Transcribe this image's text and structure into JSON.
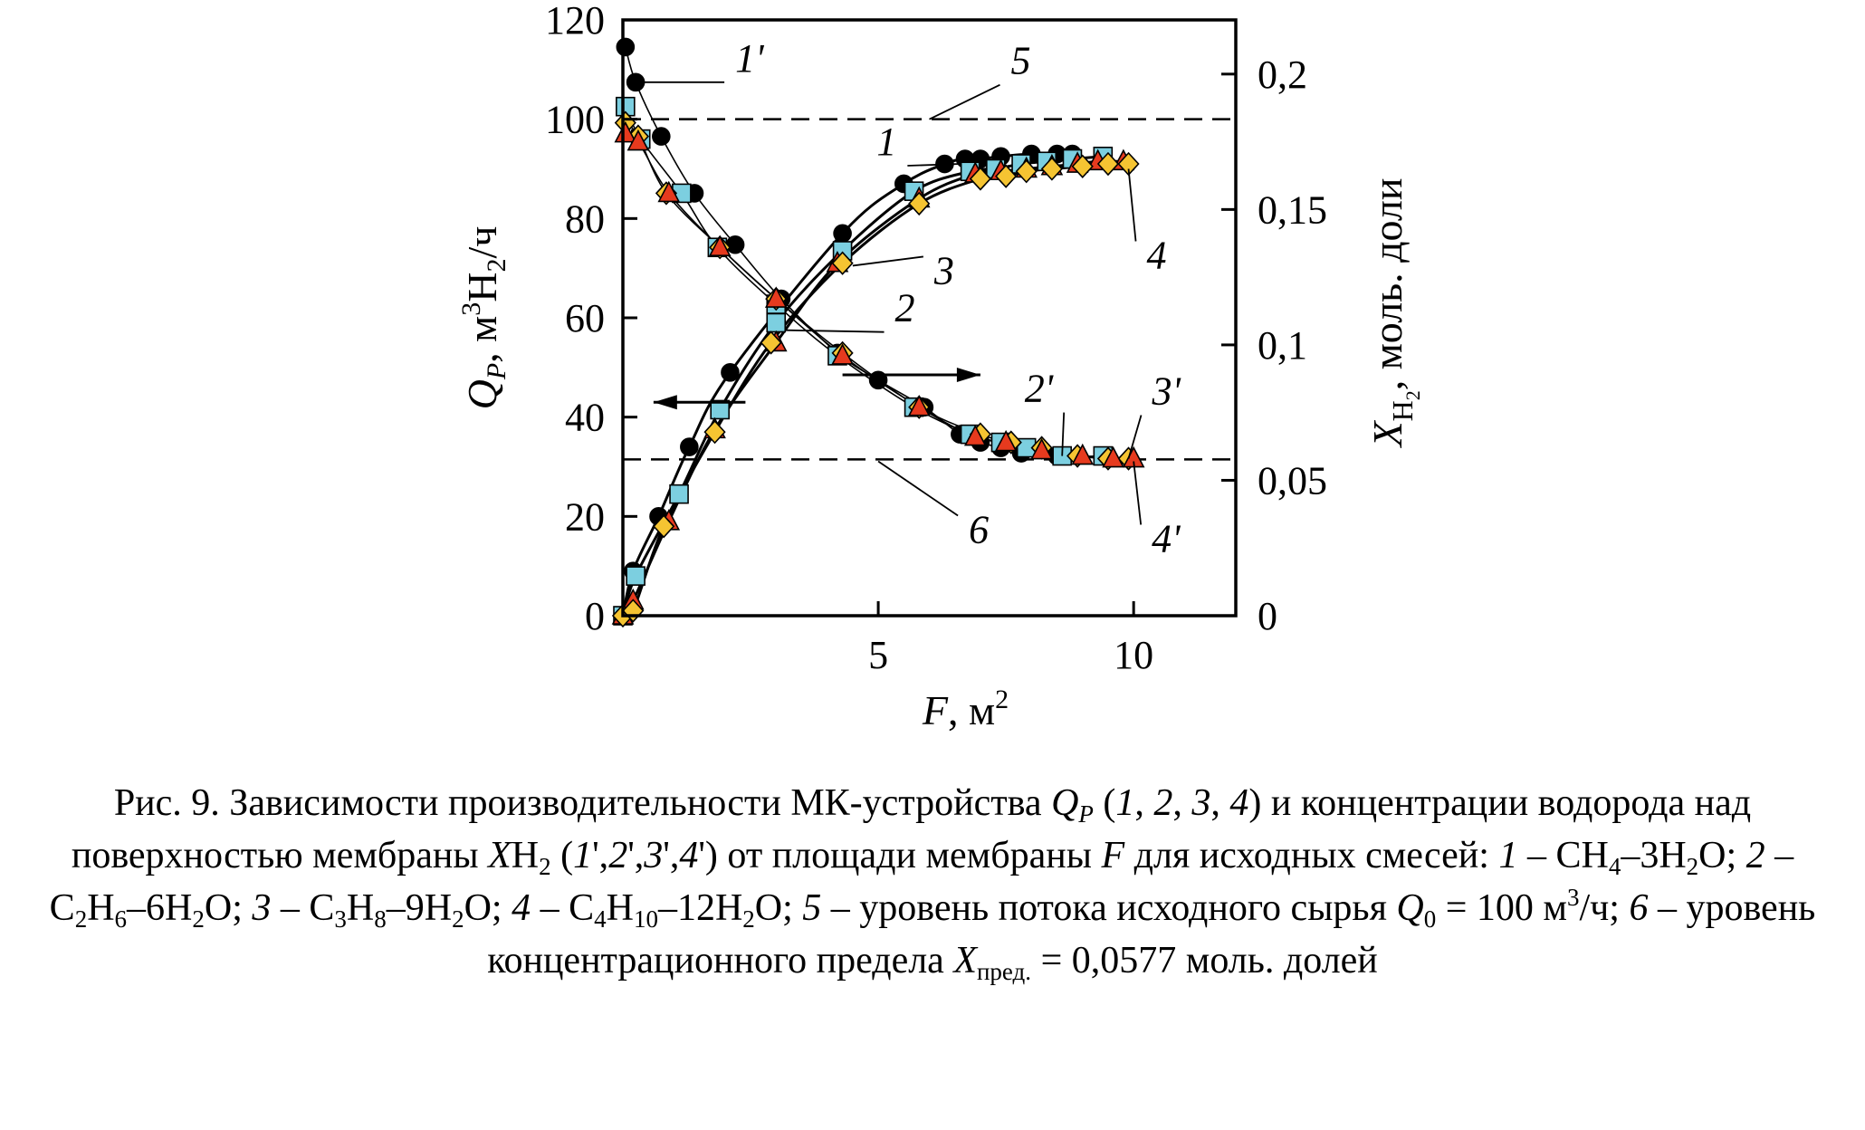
{
  "figure_caption": {
    "p01": "Рис. 9. Зависимости производительности МК-устройства ",
    "p02": "Q",
    "p03": "P",
    "p04": " (",
    "p05": "1",
    "p06": ", ",
    "p07": "2",
    "p08": ", ",
    "p09": "3",
    "p10": ", ",
    "p11": "4",
    "p12": ") и концентрации водорода над поверхностью мембраны ",
    "p13": "X",
    "p14": "H",
    "p15": "2",
    "p16": " (",
    "p17": "1",
    "p18": "',",
    "p19": "2",
    "p20": "',",
    "p21": "3",
    "p22": "',",
    "p23": "4",
    "p24": "') от площади мембраны ",
    "p25": "F",
    "p26": " для исходных смесей: ",
    "p27": "1",
    "p28": " – CH",
    "p29": "4",
    "p30": "–3H",
    "p31": "2",
    "p32": "O; ",
    "p33": "2",
    "p34": " – C",
    "p35": "2",
    "p36": "H",
    "p37": "6",
    "p38": "–6H",
    "p39": "2",
    "p40": "O; ",
    "p41": "3",
    "p42": " – C",
    "p43": "3",
    "p44": "H",
    "p45": "8",
    "p46": "–9H",
    "p47": "2",
    "p48": "O; ",
    "p49": "4",
    "p50": " – C",
    "p51": "4",
    "p52": "H",
    "p53": "10",
    "p54": "–12H",
    "p55": "2",
    "p56": "O; ",
    "p57": "5",
    "p58": " – уровень потока исходного сырья ",
    "p59": "Q",
    "p60": "0",
    "p61": " = 100 м",
    "p62": "3",
    "p63": "/ч; ",
    "p64": "6",
    "p65": " – уровень концентрационного предела ",
    "p66": "X",
    "p67": "пред.",
    "p68": " = 0,0577 моль. долей"
  },
  "chart_data": {
    "type": "scatter",
    "xaxis": {
      "range": [
        0,
        12
      ],
      "ticks": [
        5,
        10
      ],
      "tick_labels": [
        "5",
        "10"
      ],
      "label_italic": "F",
      "label_rest": ", м",
      "label_sup": "2"
    },
    "y_left": {
      "range": [
        0,
        120
      ],
      "ticks": [
        0,
        20,
        40,
        60,
        80,
        100,
        120
      ],
      "tick_labels": [
        "0",
        "20",
        "40",
        "60",
        "80",
        "100",
        "120"
      ],
      "label_italic": "Q",
      "label_sub": "P",
      "label_mid": ", м",
      "label_sup": "3",
      "label_tail_main": "H",
      "label_tail_sub": "2",
      "label_tail_end": "/ч"
    },
    "y_right": {
      "range": [
        0,
        0.22
      ],
      "ticks": [
        0,
        0.05,
        0.1,
        0.15,
        0.2
      ],
      "tick_labels": [
        "0",
        "0,05",
        "0,1",
        "0,15",
        "0,2"
      ],
      "label_italic": "X",
      "label_sub": "H",
      "label_subsub": "2",
      "label_rest": ", моль. доли"
    },
    "reference_lines": [
      {
        "name": "5",
        "axis": "left",
        "value": 100
      },
      {
        "name": "6",
        "axis": "right",
        "value": 0.0577
      }
    ],
    "series": [
      {
        "name": "1",
        "axis": "left",
        "marker": "circle",
        "color": "#000000",
        "x": [
          0,
          0.2,
          0.7,
          1.3,
          2.1,
          4.3,
          5.5,
          6.3,
          6.7,
          7.0,
          7.4,
          8.0,
          8.5,
          8.8
        ],
        "y": [
          0,
          9,
          20,
          34,
          49,
          77,
          87,
          91,
          92,
          92,
          92.5,
          93,
          93,
          93
        ]
      },
      {
        "name": "2",
        "axis": "left",
        "marker": "square",
        "color": "#7ccfe0",
        "x": [
          0,
          0.25,
          1.1,
          1.9,
          3.0,
          4.3,
          5.7,
          6.8,
          7.3,
          7.8,
          8.3,
          8.8,
          9.4
        ],
        "y": [
          0,
          8,
          24.5,
          41.5,
          59,
          73.5,
          85.5,
          89.5,
          90,
          91,
          91.5,
          92,
          92.5
        ]
      },
      {
        "name": "3",
        "axis": "left",
        "marker": "triangle",
        "color": "#e63a1e",
        "x": [
          0,
          0.2,
          0.9,
          1.8,
          3.0,
          4.2,
          5.8,
          6.9,
          7.4,
          7.9,
          8.4,
          8.9,
          9.3,
          9.8
        ],
        "y": [
          0,
          3,
          19,
          37.5,
          55,
          71,
          84,
          89,
          89.5,
          90,
          90.5,
          91,
          91.5,
          91.5
        ]
      },
      {
        "name": "4",
        "axis": "left",
        "marker": "diamond",
        "color": "#f5c432",
        "x": [
          0,
          0.2,
          0.8,
          1.8,
          2.9,
          4.3,
          5.8,
          7.0,
          7.5,
          7.9,
          8.4,
          9.0,
          9.5,
          9.9
        ],
        "y": [
          0,
          1,
          18,
          37,
          55,
          71,
          83,
          88,
          88.5,
          89.5,
          90,
          90.5,
          91,
          91
        ]
      },
      {
        "name": "1'",
        "axis": "right",
        "marker": "circle",
        "color": "#000000",
        "x": [
          0.05,
          0.25,
          0.75,
          1.4,
          2.2,
          3.1,
          4.2,
          5.0,
          5.9,
          6.6,
          7.0,
          7.4,
          7.8,
          8.5
        ],
        "y": [
          0.21,
          0.197,
          0.177,
          0.156,
          0.137,
          0.117,
          0.097,
          0.087,
          0.077,
          0.067,
          0.064,
          0.062,
          0.06,
          0.059
        ]
      },
      {
        "name": "2'",
        "axis": "right",
        "marker": "square",
        "color": "#7ccfe0",
        "x": [
          0.05,
          0.35,
          1.15,
          1.85,
          3.0,
          4.2,
          5.7,
          6.8,
          7.4,
          7.9,
          8.6,
          9.4
        ],
        "y": [
          0.188,
          0.176,
          0.156,
          0.136,
          0.115,
          0.096,
          0.077,
          0.067,
          0.064,
          0.062,
          0.059,
          0.059
        ]
      },
      {
        "name": "3'",
        "axis": "right",
        "marker": "diamond",
        "color": "#f5c432",
        "x": [
          0.05,
          0.3,
          0.85,
          1.9,
          3.0,
          4.3,
          5.8,
          7.0,
          7.6,
          8.2,
          8.9,
          9.5,
          9.9
        ],
        "y": [
          0.182,
          0.177,
          0.156,
          0.136,
          0.117,
          0.097,
          0.077,
          0.067,
          0.064,
          0.062,
          0.059,
          0.058,
          0.058
        ]
      },
      {
        "name": "4'",
        "axis": "right",
        "marker": "triangle",
        "color": "#e63a1e",
        "x": [
          0.05,
          0.3,
          0.9,
          1.9,
          3.0,
          4.3,
          5.8,
          6.9,
          7.5,
          8.2,
          9.0,
          9.6,
          10.0
        ],
        "y": [
          0.178,
          0.175,
          0.156,
          0.136,
          0.117,
          0.096,
          0.077,
          0.066,
          0.064,
          0.061,
          0.059,
          0.058,
          0.058
        ]
      }
    ],
    "annotations": [
      {
        "text": "1'",
        "point_x": 0.25,
        "point_y": 0.197,
        "axis": "right"
      },
      {
        "text": "1",
        "point_x": 6.6,
        "point_y": 91,
        "axis": "left"
      },
      {
        "text": "5",
        "point_x": 6.0,
        "point_y": 100,
        "axis": "left"
      },
      {
        "text": "4",
        "point_x": 9.9,
        "point_y": 90,
        "axis": "left"
      },
      {
        "text": "3",
        "point_x": 4.5,
        "point_y": 70.5,
        "axis": "left"
      },
      {
        "text": "2",
        "point_x": 3.2,
        "point_y": 57.5,
        "axis": "left"
      },
      {
        "text": "2'",
        "point_x": 8.6,
        "point_y": 0.059,
        "axis": "right"
      },
      {
        "text": "3'",
        "point_x": 9.9,
        "point_y": 0.058,
        "axis": "right"
      },
      {
        "text": "4'",
        "point_x": 10.0,
        "point_y": 0.057,
        "axis": "right"
      },
      {
        "text": "6",
        "point_x": 5.0,
        "point_y": 0.057,
        "axis": "right"
      }
    ],
    "arrows": [
      {
        "direction": "left",
        "from_x": 2.4,
        "to_x": 0.6,
        "y": 43,
        "axis": "left"
      },
      {
        "direction": "right",
        "from_x": 4.3,
        "to_x": 7.0,
        "y": 48.5,
        "axis": "left"
      }
    ]
  }
}
